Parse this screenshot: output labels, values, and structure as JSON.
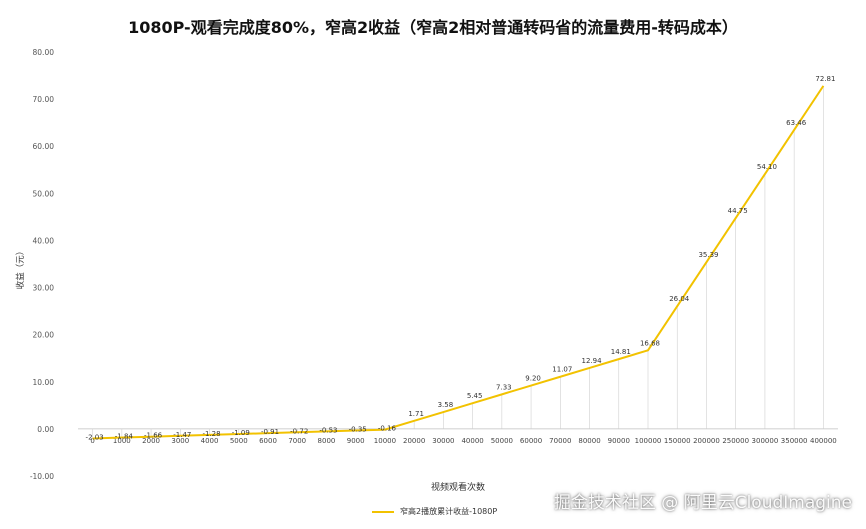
{
  "chart_data": {
    "type": "line",
    "title": "1080P-观看完成度80%，窄高2收益（窄高2相对普通转码省的流量费用-转码成本）",
    "xlabel": "视频观看次数",
    "ylabel": "收益（元）",
    "ylim": [
      -10,
      80
    ],
    "yticks": [
      "-10.00",
      "0.00",
      "10.00",
      "20.00",
      "30.00",
      "40.00",
      "50.00",
      "60.00",
      "70.00",
      "80.00"
    ],
    "grid": false,
    "legend_position": "bottom",
    "categories": [
      "0",
      "1000",
      "2000",
      "3000",
      "4000",
      "5000",
      "6000",
      "7000",
      "8000",
      "9000",
      "10000",
      "20000",
      "30000",
      "40000",
      "50000",
      "60000",
      "70000",
      "80000",
      "90000",
      "100000",
      "150000",
      "200000",
      "250000",
      "300000",
      "350000",
      "400000"
    ],
    "series": [
      {
        "name": "窄高2播放累计收益-1080P",
        "color": "#f2c200",
        "values": [
          -2.03,
          -1.84,
          -1.66,
          -1.47,
          -1.28,
          -1.09,
          -0.91,
          -0.72,
          -0.53,
          -0.35,
          -0.16,
          1.71,
          3.58,
          5.45,
          7.33,
          9.2,
          11.07,
          12.94,
          14.81,
          16.68,
          26.04,
          35.39,
          44.75,
          54.1,
          63.46,
          72.81
        ],
        "labels": [
          "-2.03",
          "-1.84",
          "-1.66",
          "-1.47",
          "-1.28",
          "-1.09",
          "-0.91",
          "-0.72",
          "-0.53",
          "-0.35",
          "-0.16",
          "1.71",
          "3.58",
          "5.45",
          "7.33",
          "9.20",
          "11.07",
          "12.94",
          "14.81",
          "16.68",
          "26.04",
          "35.39",
          "44.75",
          "54.10",
          "63.46",
          "72.81"
        ]
      }
    ]
  },
  "watermark": "掘金技术社区 @ 阿里云CloudImagine"
}
